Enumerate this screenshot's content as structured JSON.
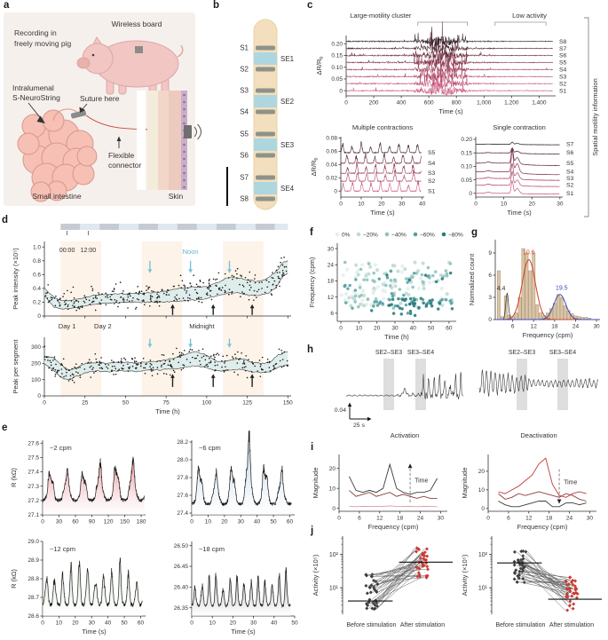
{
  "panels": {
    "a": {
      "letter": "a",
      "labels": {
        "recording": [
          "Recording in",
          "freely moving pig"
        ],
        "wireless": "Wireless board",
        "device": [
          "Intralumenal",
          "S-NeuroString"
        ],
        "suture": "Suture here",
        "connector": [
          "Flexible",
          "connector"
        ],
        "intestine": "Small intestine",
        "skin": "Skin"
      }
    },
    "b": {
      "letter": "b",
      "electrodes": [
        "S1",
        "S2",
        "S3",
        "S4",
        "S5",
        "S6",
        "S7",
        "S8"
      ],
      "segments": [
        "SE1",
        "SE2",
        "SE3",
        "SE4"
      ]
    },
    "c": {
      "letter": "c",
      "side_label": "Spatial motility information"
    },
    "d": {
      "letter": "d"
    },
    "e": {
      "letter": "e"
    },
    "f": {
      "letter": "f"
    },
    "g": {
      "letter": "g"
    },
    "h": {
      "letter": "h"
    },
    "i": {
      "letter": "i"
    },
    "j": {
      "letter": "j"
    }
  },
  "chart_data": [
    {
      "id": "c-top",
      "type": "line",
      "kind": "stacked",
      "xlabel": "Time (s)",
      "ylabel": "ΔR/R_b",
      "xlim": [
        0,
        1520
      ],
      "xticks": [
        0,
        200,
        400,
        600,
        800,
        1000,
        1200,
        1400
      ],
      "xtick_labels": [
        "0",
        "200",
        "400",
        "600",
        "800",
        "1,000",
        "1,200",
        "1,400"
      ],
      "ylim": [
        -0.022,
        0.235
      ],
      "yticks": [
        0,
        0.05,
        0.1,
        0.15,
        0.2
      ],
      "ytick_labels": [
        "0",
        "0.05",
        "0.10",
        "0.15",
        "0.20"
      ],
      "traces": [
        "S1",
        "S2",
        "S3",
        "S4",
        "S5",
        "S6",
        "S7",
        "S8"
      ],
      "offsets": [
        0,
        0.03,
        0.06,
        0.09,
        0.12,
        0.15,
        0.18,
        0.21
      ],
      "colors": [
        "#cb5a83",
        "#c05277",
        "#b04a6a",
        "#9c405c",
        "#85364c",
        "#6a2c3c",
        "#4d242e",
        "#302126"
      ],
      "annotations": [
        {
          "label": "Large-motility cluster",
          "span": [
            520,
            880
          ],
          "label_x": 250
        },
        {
          "label": "Low activity",
          "span": [
            1080,
            1450
          ],
          "label_x": 1330
        }
      ]
    },
    {
      "id": "c-multi",
      "type": "line",
      "kind": "osc",
      "title": "Multiple contractions",
      "xlabel": "Time (s)",
      "ylabel": "ΔR/R_b",
      "xlim": [
        0,
        41
      ],
      "xticks": [
        0,
        10,
        20,
        30,
        40
      ],
      "ylim": [
        -0.009,
        0.082
      ],
      "yticks": [
        0,
        0.02,
        0.04,
        0.06,
        0.08
      ],
      "ytick_labels": [
        "0",
        "0.02",
        "0.04",
        "0.06",
        "0.08"
      ],
      "traces": [
        "S1",
        "S2",
        "S3",
        "S4",
        "S5"
      ],
      "offsets": [
        0,
        0.015,
        0.027,
        0.042,
        0.058
      ],
      "colors": [
        "#cb5a83",
        "#b04a6a",
        "#923c54",
        "#6a2c3c",
        "#3c222a"
      ],
      "freq_cpm": 13
    },
    {
      "id": "c-single",
      "type": "line",
      "kind": "spike",
      "title": "Single contraction",
      "xlabel": "Time (s)",
      "xlim": [
        0,
        31
      ],
      "xticks": [
        0,
        10,
        20,
        30
      ],
      "ylim": [
        -0.014,
        0.21
      ],
      "yticks": [
        0,
        0.05,
        0.1,
        0.15,
        0.2
      ],
      "ytick_labels": [
        "0",
        "0.05",
        "0.10",
        "0.15",
        "0.20"
      ],
      "traces": [
        "S1",
        "S2",
        "S3",
        "S4",
        "S5",
        "S6",
        "S7"
      ],
      "offsets": [
        0,
        0.03,
        0.055,
        0.08,
        0.112,
        0.15,
        0.182
      ],
      "colors": [
        "#cb5a83",
        "#bb5074",
        "#a44563",
        "#8a3850",
        "#6a2c3c",
        "#50242f",
        "#302126"
      ],
      "spike_time_s": 13,
      "spike_amps": [
        0.046,
        0.05,
        0.055,
        0.08,
        0.055,
        0.018,
        0.008
      ]
    },
    {
      "id": "d-top",
      "type": "scatter",
      "kind": "band",
      "ylabel": "Peak intensity (×10⁵)",
      "ylim": [
        0,
        1.08
      ],
      "yticks": [
        0,
        0.2,
        0.4,
        0.6,
        0.8,
        1.0
      ],
      "ytick_labels": [
        "0",
        "0.2",
        "0.4",
        "0.6",
        "0.8",
        "1.0"
      ],
      "clock_labels": [
        "00:00",
        "12:00"
      ],
      "noon_label": "Noon",
      "band_upper": [
        [
          0,
          0.4
        ],
        [
          6,
          0.27
        ],
        [
          12,
          0.22
        ],
        [
          20,
          0.24
        ],
        [
          30,
          0.3
        ],
        [
          45,
          0.32
        ],
        [
          60,
          0.33
        ],
        [
          72,
          0.35
        ],
        [
          84,
          0.4
        ],
        [
          92,
          0.42
        ],
        [
          100,
          0.42
        ],
        [
          108,
          0.5
        ],
        [
          114,
          0.57
        ],
        [
          120,
          0.55
        ],
        [
          126,
          0.52
        ],
        [
          132,
          0.5
        ],
        [
          138,
          0.55
        ],
        [
          143,
          0.65
        ],
        [
          147,
          0.78
        ],
        [
          150,
          0.8
        ]
      ],
      "band_lower": [
        [
          0,
          0.3
        ],
        [
          6,
          0.13
        ],
        [
          12,
          0.1
        ],
        [
          20,
          0.12
        ],
        [
          30,
          0.17
        ],
        [
          45,
          0.19
        ],
        [
          60,
          0.2
        ],
        [
          72,
          0.2
        ],
        [
          84,
          0.22
        ],
        [
          92,
          0.23
        ],
        [
          100,
          0.25
        ],
        [
          108,
          0.3
        ],
        [
          114,
          0.34
        ],
        [
          120,
          0.34
        ],
        [
          126,
          0.3
        ],
        [
          132,
          0.3
        ],
        [
          138,
          0.33
        ],
        [
          143,
          0.42
        ],
        [
          147,
          0.58
        ],
        [
          150,
          0.62
        ]
      ]
    },
    {
      "id": "d-bottom",
      "type": "scatter",
      "kind": "band",
      "ylabel": "Peak per segment",
      "xlabel": "Time (h)",
      "xlim": [
        0,
        152
      ],
      "xticks": [
        0,
        25,
        50,
        75,
        100,
        125,
        150
      ],
      "ylim": [
        0,
        360
      ],
      "yticks": [
        0,
        100,
        200,
        300
      ],
      "day_labels": [
        "Day 1",
        "Day 2"
      ],
      "midnight_label": "Midnight",
      "band_upper": [
        [
          0,
          245
        ],
        [
          5,
          235
        ],
        [
          10,
          195
        ],
        [
          15,
          155
        ],
        [
          20,
          175
        ],
        [
          25,
          198
        ],
        [
          32,
          205
        ],
        [
          40,
          202
        ],
        [
          48,
          208
        ],
        [
          56,
          202
        ],
        [
          64,
          208
        ],
        [
          72,
          215
        ],
        [
          78,
          228
        ],
        [
          84,
          245
        ],
        [
          88,
          262
        ],
        [
          93,
          272
        ],
        [
          97,
          262
        ],
        [
          102,
          240
        ],
        [
          106,
          212
        ],
        [
          112,
          215
        ],
        [
          118,
          228
        ],
        [
          124,
          222
        ],
        [
          128,
          205
        ],
        [
          134,
          198
        ],
        [
          139,
          208
        ],
        [
          144,
          252
        ],
        [
          150,
          272
        ]
      ],
      "band_lower": [
        [
          0,
          195
        ],
        [
          5,
          165
        ],
        [
          10,
          115
        ],
        [
          15,
          97
        ],
        [
          20,
          122
        ],
        [
          25,
          142
        ],
        [
          32,
          152
        ],
        [
          40,
          150
        ],
        [
          48,
          155
        ],
        [
          56,
          150
        ],
        [
          64,
          156
        ],
        [
          72,
          160
        ],
        [
          78,
          165
        ],
        [
          84,
          172
        ],
        [
          88,
          180
        ],
        [
          93,
          185
        ],
        [
          97,
          180
        ],
        [
          102,
          165
        ],
        [
          106,
          152
        ],
        [
          112,
          156
        ],
        [
          118,
          163
        ],
        [
          124,
          158
        ],
        [
          128,
          148
        ],
        [
          134,
          142
        ],
        [
          139,
          150
        ],
        [
          144,
          176
        ],
        [
          150,
          192
        ]
      ],
      "blue_arrows_h": [
        65,
        90,
        114
      ],
      "black_arrows_h": [
        79,
        104,
        128
      ]
    },
    {
      "id": "e-1",
      "type": "line",
      "kind": "fillosc",
      "label": "~2 cpm",
      "fill": "#ea8287",
      "ylabel": "R (kΩ)",
      "ylim": [
        27.1,
        27.62
      ],
      "yticks": [
        27.1,
        27.2,
        27.3,
        27.4,
        27.5,
        27.6
      ],
      "ytick_labels": [
        "27.1",
        "27.2",
        "27.3",
        "27.4",
        "27.5",
        "27.6"
      ],
      "xlim": [
        0,
        188
      ],
      "xticks": [
        0,
        30,
        60,
        90,
        120,
        150,
        180
      ],
      "base": 27.2,
      "peak": 27.46,
      "period_s": 30
    },
    {
      "id": "e-2",
      "type": "line",
      "kind": "fillosc",
      "label": "~6 cpm",
      "fill": "#9cc4e4",
      "ylim": [
        27.38,
        28.22
      ],
      "yticks": [
        27.4,
        27.6,
        27.8,
        28.0,
        28.2
      ],
      "ytick_labels": [
        "27.4",
        "27.6",
        "27.8",
        "28.0",
        "28.2"
      ],
      "xlim": [
        0,
        63
      ],
      "xticks": [
        0,
        10,
        20,
        30,
        40,
        50,
        60
      ],
      "base": 27.5,
      "peak": 27.9,
      "tall_peak": 28.15,
      "period_s": 10
    },
    {
      "id": "e-3",
      "type": "line",
      "kind": "fillosc",
      "label": "~12 cpm",
      "fill": "#c8e2b8",
      "ylabel": "R (kΩ)",
      "xlabel": "Time (s)",
      "ylim": [
        28.6,
        29.0
      ],
      "yticks": [
        28.6,
        28.7,
        28.8,
        28.9,
        29.0
      ],
      "ytick_labels": [
        "28.6",
        "28.7",
        "28.8",
        "28.9",
        "29.0"
      ],
      "xlim": [
        0,
        63
      ],
      "xticks": [
        0,
        10,
        20,
        30,
        40,
        50,
        60
      ],
      "base": 28.66,
      "peak": 28.86,
      "period_s": 5
    },
    {
      "id": "e-4",
      "type": "line",
      "kind": "fillosc",
      "label": "~18 cpm",
      "fill": "#777777",
      "xlabel": "Time (s)",
      "ylim": [
        26.33,
        26.51
      ],
      "yticks": [
        26.35,
        26.4,
        26.45,
        26.5
      ],
      "ytick_labels": [
        "26.35",
        "26.40",
        "26.45",
        "26.50"
      ],
      "xlim": [
        0,
        50
      ],
      "xticks": [
        0,
        10,
        20,
        30,
        40,
        50
      ],
      "base": 26.355,
      "peak": 26.43,
      "period_s": 3.4
    },
    {
      "id": "f",
      "type": "scatter",
      "kind": "classes",
      "legend": [
        [
          "0%",
          "#e4efeb"
        ],
        [
          "−20%",
          "#bcdcd3"
        ],
        [
          "−40%",
          "#8fc2bd"
        ],
        [
          "−60%",
          "#55a0a1"
        ],
        [
          "−80%",
          "#2a7c80"
        ]
      ],
      "ylabel": "Frequency (cpm)",
      "ylim": [
        3,
        32
      ],
      "yticks": [
        6,
        12,
        18,
        24,
        30
      ],
      "xlabel": "Time (h)",
      "xlim": [
        -2,
        64
      ],
      "xticks": [
        0,
        10,
        20,
        30,
        40,
        50,
        60
      ]
    },
    {
      "id": "g",
      "type": "bar",
      "kind": "hist",
      "ylabel": "Normalized count",
      "ylim": [
        0,
        10.8
      ],
      "yticks": [
        0,
        3,
        6,
        9
      ],
      "xlabel": "Frequency (cpm)",
      "xlim": [
        1,
        31
      ],
      "xticks": [
        6,
        12,
        18,
        24,
        30
      ],
      "bar_color": "#d9c5a7",
      "bar_edge": "#ab8f6d",
      "bins": [
        2,
        3,
        4,
        5,
        6,
        7,
        8,
        9,
        10,
        11,
        12,
        13,
        14,
        15,
        16,
        17,
        18,
        19,
        20,
        21,
        22,
        23,
        24,
        25,
        26,
        27,
        28
      ],
      "heights": [
        6.6,
        0.4,
        3.2,
        0.6,
        0.4,
        0.9,
        3.0,
        9.6,
        9.0,
        6.6,
        9.0,
        2.0,
        0.9,
        0.5,
        0.9,
        1.5,
        2.2,
        3.4,
        3.0,
        1.9,
        1.2,
        0.8,
        0.5,
        0.4,
        0.3,
        0.3,
        0.2
      ],
      "peaks": [
        {
          "label": "4.4",
          "mu": 4.4,
          "sigma": 0.38,
          "amp": 3.6,
          "color": "#444444"
        },
        {
          "label": "10.6",
          "mu": 10.6,
          "sigma": 1.9,
          "amp": 8.1,
          "color": "#cf4228"
        },
        {
          "label": "19.5",
          "mu": 19.5,
          "sigma": 1.7,
          "amp": 3.4,
          "color": "#3b4bc0"
        }
      ]
    },
    {
      "id": "h",
      "type": "line",
      "kind": "panelH",
      "band_labels": [
        "SE2–SE3",
        "SE3–SE4"
      ],
      "captions": [
        "Activation",
        "Deactivation"
      ],
      "scale_v": "0.04",
      "scale_h": "25 s"
    },
    {
      "id": "i-left",
      "type": "line",
      "kind": "freqlines",
      "ylabel": "Magnitude",
      "ylim": [
        -1.5,
        27
      ],
      "yticks": [
        0,
        10,
        20
      ],
      "xlabel": "Frequency (cpm)",
      "xlim": [
        0,
        32
      ],
      "xticks": [
        0,
        6,
        12,
        18,
        24,
        30
      ],
      "time_label": "Time",
      "arrow_dir": "up",
      "arrow_x": 21,
      "x": [
        3,
        5,
        7,
        9,
        11,
        13,
        15,
        17,
        19,
        21,
        23,
        25,
        27,
        29
      ],
      "series": [
        {
          "color": "#d99aa6",
          "y": [
            1,
            0.8,
            1,
            0.9,
            1,
            1,
            1.2,
            1,
            0.9,
            1,
            0.8,
            1,
            0.9,
            0.8
          ]
        },
        {
          "color": "#8e3b3b",
          "y": [
            9,
            6,
            7,
            8,
            6,
            7,
            8,
            6,
            7,
            6,
            5,
            6,
            5,
            5
          ]
        },
        {
          "color": "#3a3a3a",
          "y": [
            16,
            9,
            8,
            9,
            8,
            10,
            22,
            10,
            8,
            7,
            8,
            8,
            9,
            15
          ]
        }
      ]
    },
    {
      "id": "i-right",
      "type": "line",
      "kind": "freqlines",
      "ylabel": "Magnitude",
      "ylim": [
        -1.5,
        29
      ],
      "yticks": [
        0,
        10,
        20
      ],
      "xlabel": "Frequency (cpm)",
      "xlim": [
        0,
        32
      ],
      "xticks": [
        0,
        6,
        12,
        18,
        24,
        30
      ],
      "time_label": "Time",
      "arrow_dir": "down",
      "arrow_x": 21,
      "x": [
        3,
        5,
        7,
        9,
        11,
        13,
        15,
        17,
        19,
        21,
        23,
        25,
        27,
        29
      ],
      "series": [
        {
          "color": "#3a3a3a",
          "y": [
            4,
            2,
            1,
            1,
            2,
            3,
            4,
            4,
            1,
            1,
            3,
            3,
            2,
            3
          ]
        },
        {
          "color": "#8e3b3b",
          "y": [
            8,
            5,
            6,
            8,
            7,
            8,
            9,
            8,
            7,
            6,
            8,
            7,
            5,
            4
          ]
        },
        {
          "color": "#c23939",
          "y": [
            9,
            8,
            10,
            12,
            15,
            18,
            24,
            27,
            13,
            7,
            6,
            8,
            9,
            8
          ]
        }
      ]
    },
    {
      "id": "j-left",
      "type": "scatter",
      "kind": "paired",
      "ylabel": "Activity (×10⁵)",
      "ytick_labels": [
        "10¹",
        "10²"
      ],
      "categories": [
        "Before stimulation",
        "After stimulation"
      ],
      "trend": "increase",
      "n_pairs": 34,
      "median_before": 4,
      "median_after": 58
    },
    {
      "id": "j-right",
      "type": "scatter",
      "kind": "paired",
      "ylabel": "Activity (×10⁵)",
      "ytick_labels": [
        "10¹",
        "10²"
      ],
      "categories": [
        "Before stimulation",
        "After stimulation"
      ],
      "trend": "decrease",
      "n_pairs": 34,
      "median_before": 55,
      "median_after": 4.5
    }
  ]
}
